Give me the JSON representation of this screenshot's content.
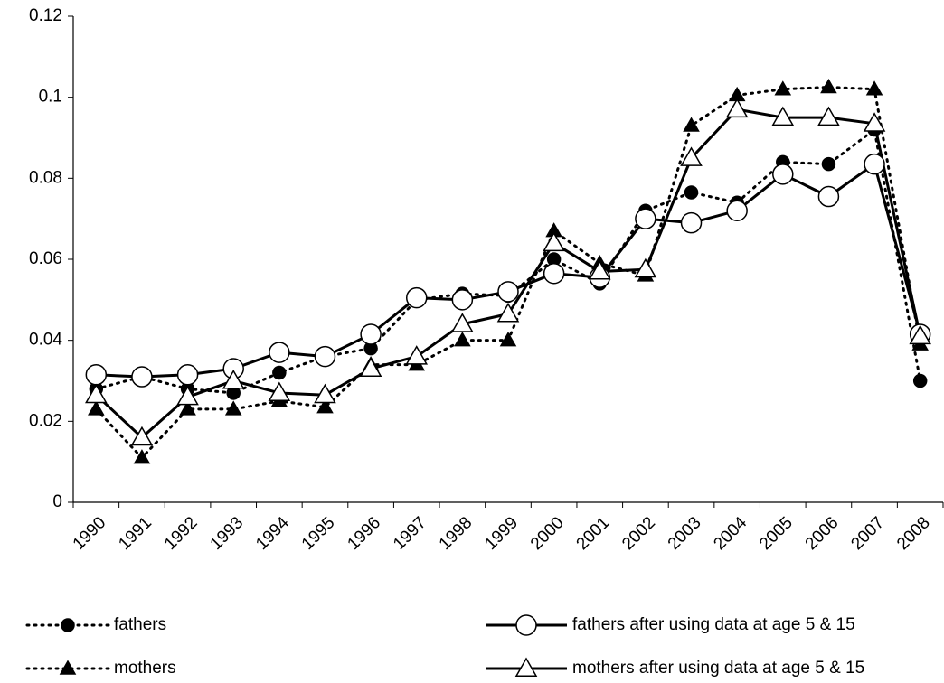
{
  "chart_data": {
    "type": "line",
    "categories": [
      "1990",
      "1991",
      "1992",
      "1993",
      "1994",
      "1995",
      "1996",
      "1997",
      "1998",
      "1999",
      "2000",
      "2001",
      "2002",
      "2003",
      "2004",
      "2005",
      "2006",
      "2007",
      "2008"
    ],
    "series": [
      {
        "name": "fathers",
        "color": "#000000",
        "line_style": "dotted",
        "marker": "circle",
        "marker_filled": true,
        "values": [
          0.028,
          0.031,
          0.028,
          0.027,
          0.032,
          0.036,
          0.038,
          0.05,
          0.0515,
          0.051,
          0.06,
          0.054,
          0.072,
          0.0765,
          0.074,
          0.084,
          0.0835,
          0.092,
          0.03
        ]
      },
      {
        "name": "mothers",
        "color": "#000000",
        "line_style": "dotted",
        "marker": "triangle",
        "marker_filled": true,
        "values": [
          0.023,
          0.011,
          0.023,
          0.023,
          0.025,
          0.0235,
          0.034,
          0.034,
          0.04,
          0.04,
          0.067,
          0.059,
          0.056,
          0.093,
          0.1005,
          0.102,
          0.1025,
          0.102,
          0.039
        ]
      },
      {
        "name": "fathers after using data at age 5 & 15",
        "color": "#000000",
        "line_style": "solid",
        "marker": "circle",
        "marker_filled": false,
        "values": [
          0.0315,
          0.031,
          0.0315,
          0.033,
          0.037,
          0.036,
          0.0415,
          0.0505,
          0.05,
          0.052,
          0.0565,
          0.0555,
          0.07,
          0.069,
          0.072,
          0.081,
          0.0755,
          0.0835,
          0.0415
        ]
      },
      {
        "name": "mothers after using data at age 5 & 15",
        "color": "#000000",
        "line_style": "solid",
        "marker": "triangle",
        "marker_filled": false,
        "values": [
          0.0265,
          0.016,
          0.026,
          0.03,
          0.027,
          0.0265,
          0.033,
          0.036,
          0.044,
          0.0465,
          0.064,
          0.057,
          0.0575,
          0.085,
          0.097,
          0.095,
          0.095,
          0.0935,
          0.041
        ]
      }
    ],
    "ylim": [
      0,
      0.12
    ],
    "yticks": [
      0,
      0.02,
      0.04,
      0.06,
      0.08,
      0.1,
      0.12
    ],
    "grid": false,
    "legend": "bottom"
  }
}
